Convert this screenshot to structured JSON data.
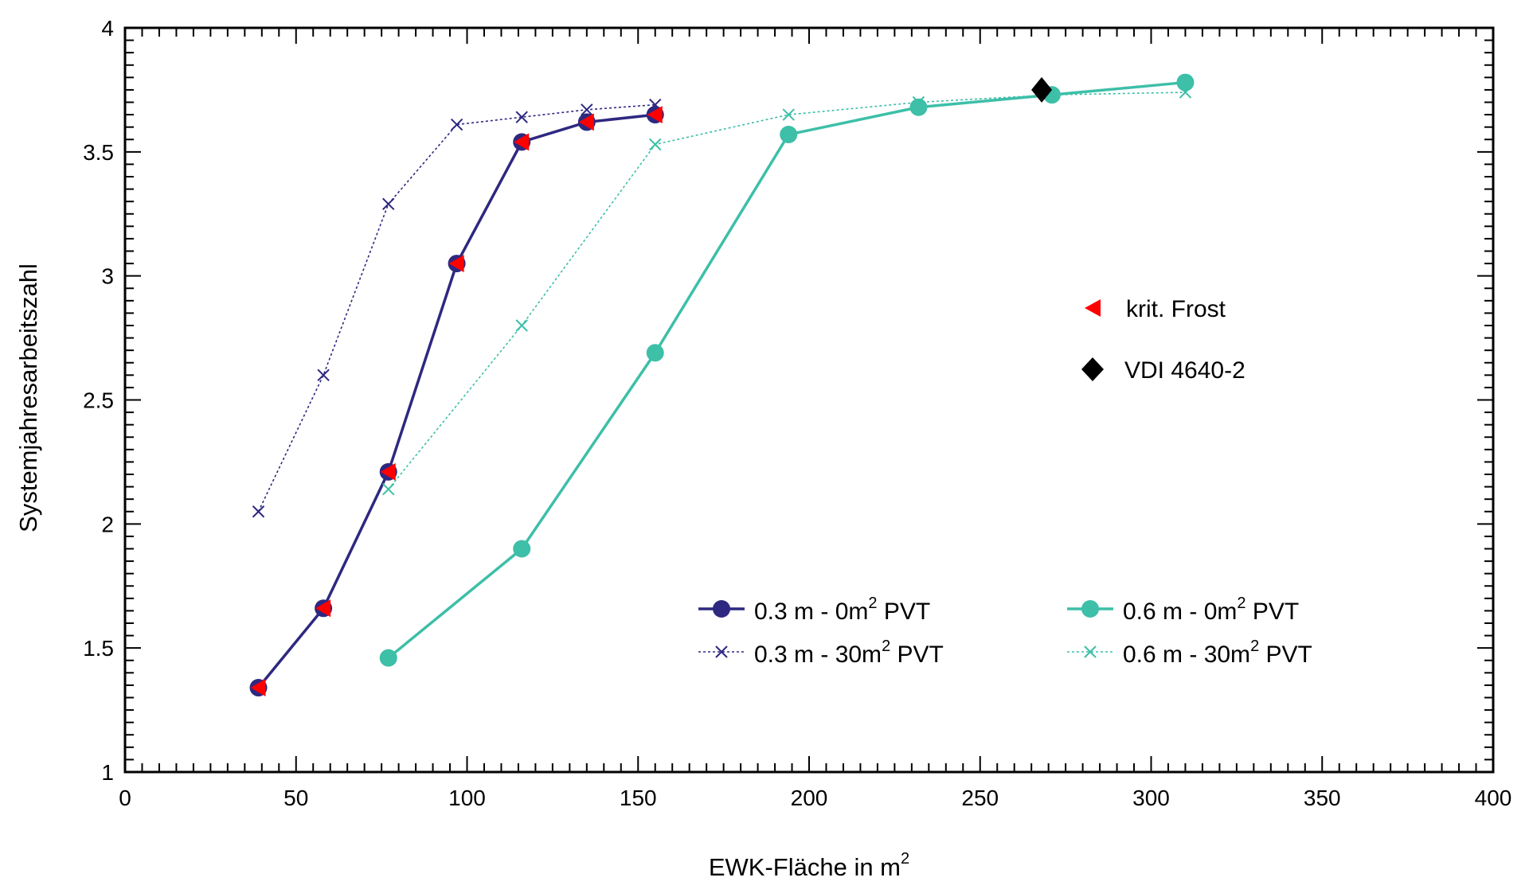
{
  "chart_data": {
    "type": "line",
    "title": "",
    "xlabel": "EWK-Fläche in m",
    "xlabel_sup": "2",
    "ylabel": "Systemjahresarbeitszahl",
    "xlim": [
      0,
      400
    ],
    "ylim": [
      1,
      4
    ],
    "xticks": [
      0,
      50,
      100,
      150,
      200,
      250,
      300,
      350,
      400
    ],
    "yticks": [
      1,
      1.5,
      2,
      2.5,
      3,
      3.5,
      4
    ],
    "xtick_labels": [
      "0",
      "50",
      "100",
      "150",
      "200",
      "250",
      "300",
      "350",
      "400"
    ],
    "ytick_labels": [
      "1",
      "1.5",
      "2",
      "2.5",
      "3",
      "3.5",
      "4"
    ],
    "grid": false,
    "series": [
      {
        "name_parts": [
          "0.3 m - 0m",
          "2",
          " PVT"
        ],
        "color": "#2e2880",
        "style": "solid-circle",
        "x": [
          39,
          58,
          77,
          97,
          116,
          135,
          155
        ],
        "y": [
          1.34,
          1.66,
          2.21,
          3.05,
          3.54,
          3.62,
          3.65
        ]
      },
      {
        "name_parts": [
          "0.3 m - 30m",
          "2",
          " PVT"
        ],
        "color": "#2e2880",
        "style": "dotted-x",
        "x": [
          39,
          58,
          77,
          97,
          116,
          135,
          155
        ],
        "y": [
          2.05,
          2.6,
          3.29,
          3.61,
          3.64,
          3.67,
          3.69
        ]
      },
      {
        "name_parts": [
          "0.6 m - 0m",
          "2",
          " PVT"
        ],
        "color": "#3dbfa8",
        "style": "solid-circle",
        "x": [
          77,
          116,
          155,
          194,
          232,
          271,
          310
        ],
        "y": [
          1.46,
          1.9,
          2.69,
          3.57,
          3.68,
          3.73,
          3.78
        ]
      },
      {
        "name_parts": [
          "0.6 m - 30m",
          "2",
          " PVT"
        ],
        "color": "#3dbfa8",
        "style": "dotted-x",
        "x": [
          77,
          116,
          155,
          194,
          232,
          271,
          310
        ],
        "y": [
          2.14,
          2.8,
          3.53,
          3.65,
          3.7,
          3.73,
          3.74
        ]
      }
    ],
    "markers": [
      {
        "name": "krit. Frost",
        "color": "#ff0000",
        "shape": "triangle-left",
        "x": [
          39,
          58,
          77,
          97,
          116,
          135,
          155
        ],
        "y": [
          1.34,
          1.66,
          2.21,
          3.05,
          3.54,
          3.62,
          3.65
        ]
      },
      {
        "name": "VDI 4640-2",
        "color": "#000000",
        "shape": "diamond",
        "x": [
          268
        ],
        "y": [
          3.75
        ]
      }
    ]
  }
}
